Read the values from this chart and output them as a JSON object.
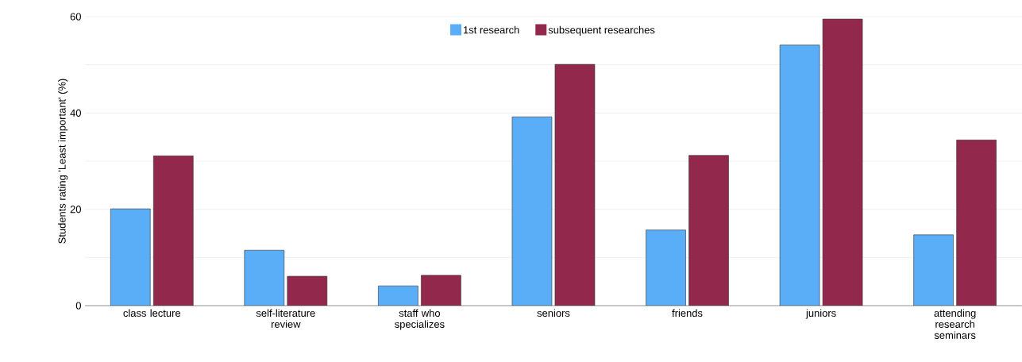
{
  "chart_data": {
    "type": "bar",
    "ylabel": "Students rating 'Least important' (%)",
    "categories": [
      "class lecture",
      "self-literature review",
      "staff who specializes",
      "seniors",
      "friends",
      "juniors",
      "attending research seminars"
    ],
    "series": [
      {
        "name": "1st research",
        "color": "#5aaef8",
        "values": [
          20.1,
          11.5,
          4.1,
          39.2,
          15.7,
          54.1,
          14.7
        ]
      },
      {
        "name": "subsequent researches",
        "color": "#92284c",
        "values": [
          31.1,
          6.1,
          6.3,
          50.1,
          31.2,
          59.5,
          34.4
        ]
      }
    ],
    "ylim": [
      0,
      60
    ],
    "yticks": [
      0,
      {
        "value": 10,
        "label": null
      },
      20,
      {
        "value": 30,
        "label": null
      },
      40,
      {
        "value": 50,
        "label": null
      },
      60
    ],
    "grid": "y",
    "legend": "top"
  }
}
